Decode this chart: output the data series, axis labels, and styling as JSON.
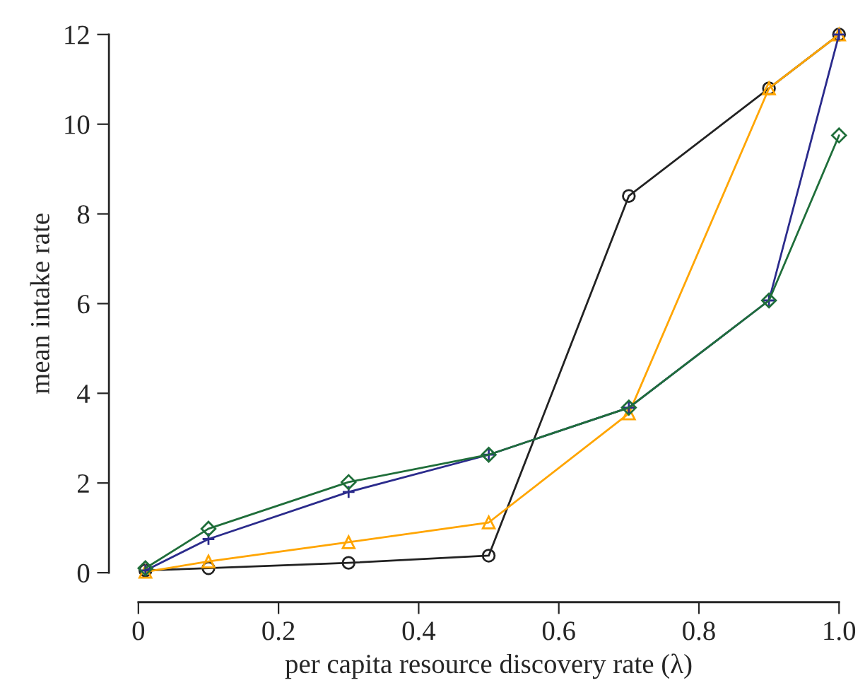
{
  "chart_data": {
    "type": "line",
    "xlabel": "per capita resource discovery rate (λ)",
    "ylabel": "mean intake rate",
    "x": [
      0.01,
      0.1,
      0.3,
      0.5,
      0.7,
      0.9,
      1.0
    ],
    "series": [
      {
        "color": "#222222",
        "marker": "circle",
        "values": [
          0.05,
          0.1,
          0.22,
          0.38,
          8.4,
          10.8,
          12
        ]
      },
      {
        "color": "#ffa500",
        "marker": "triangle",
        "values": [
          0.02,
          0.25,
          0.68,
          1.12,
          3.55,
          10.8,
          12
        ]
      },
      {
        "color": "#2b2b8c",
        "marker": "cross",
        "values": [
          0.05,
          0.75,
          1.8,
          2.63,
          3.68,
          6.07,
          12
        ]
      },
      {
        "color": "#1f6e3a",
        "marker": "diamond",
        "values": [
          0.1,
          0.98,
          2.02,
          2.63,
          3.68,
          6.07,
          9.75
        ]
      }
    ],
    "xlim": [
      0,
      1
    ],
    "ylim": [
      0,
      12
    ],
    "xticks": [
      0,
      0.2,
      0.4,
      0.6,
      0.8,
      {
        "value": 1,
        "label": "1.0"
      }
    ],
    "yticks": [
      0,
      2,
      4,
      6,
      8,
      10,
      12
    ],
    "grid": false,
    "legend": false
  }
}
